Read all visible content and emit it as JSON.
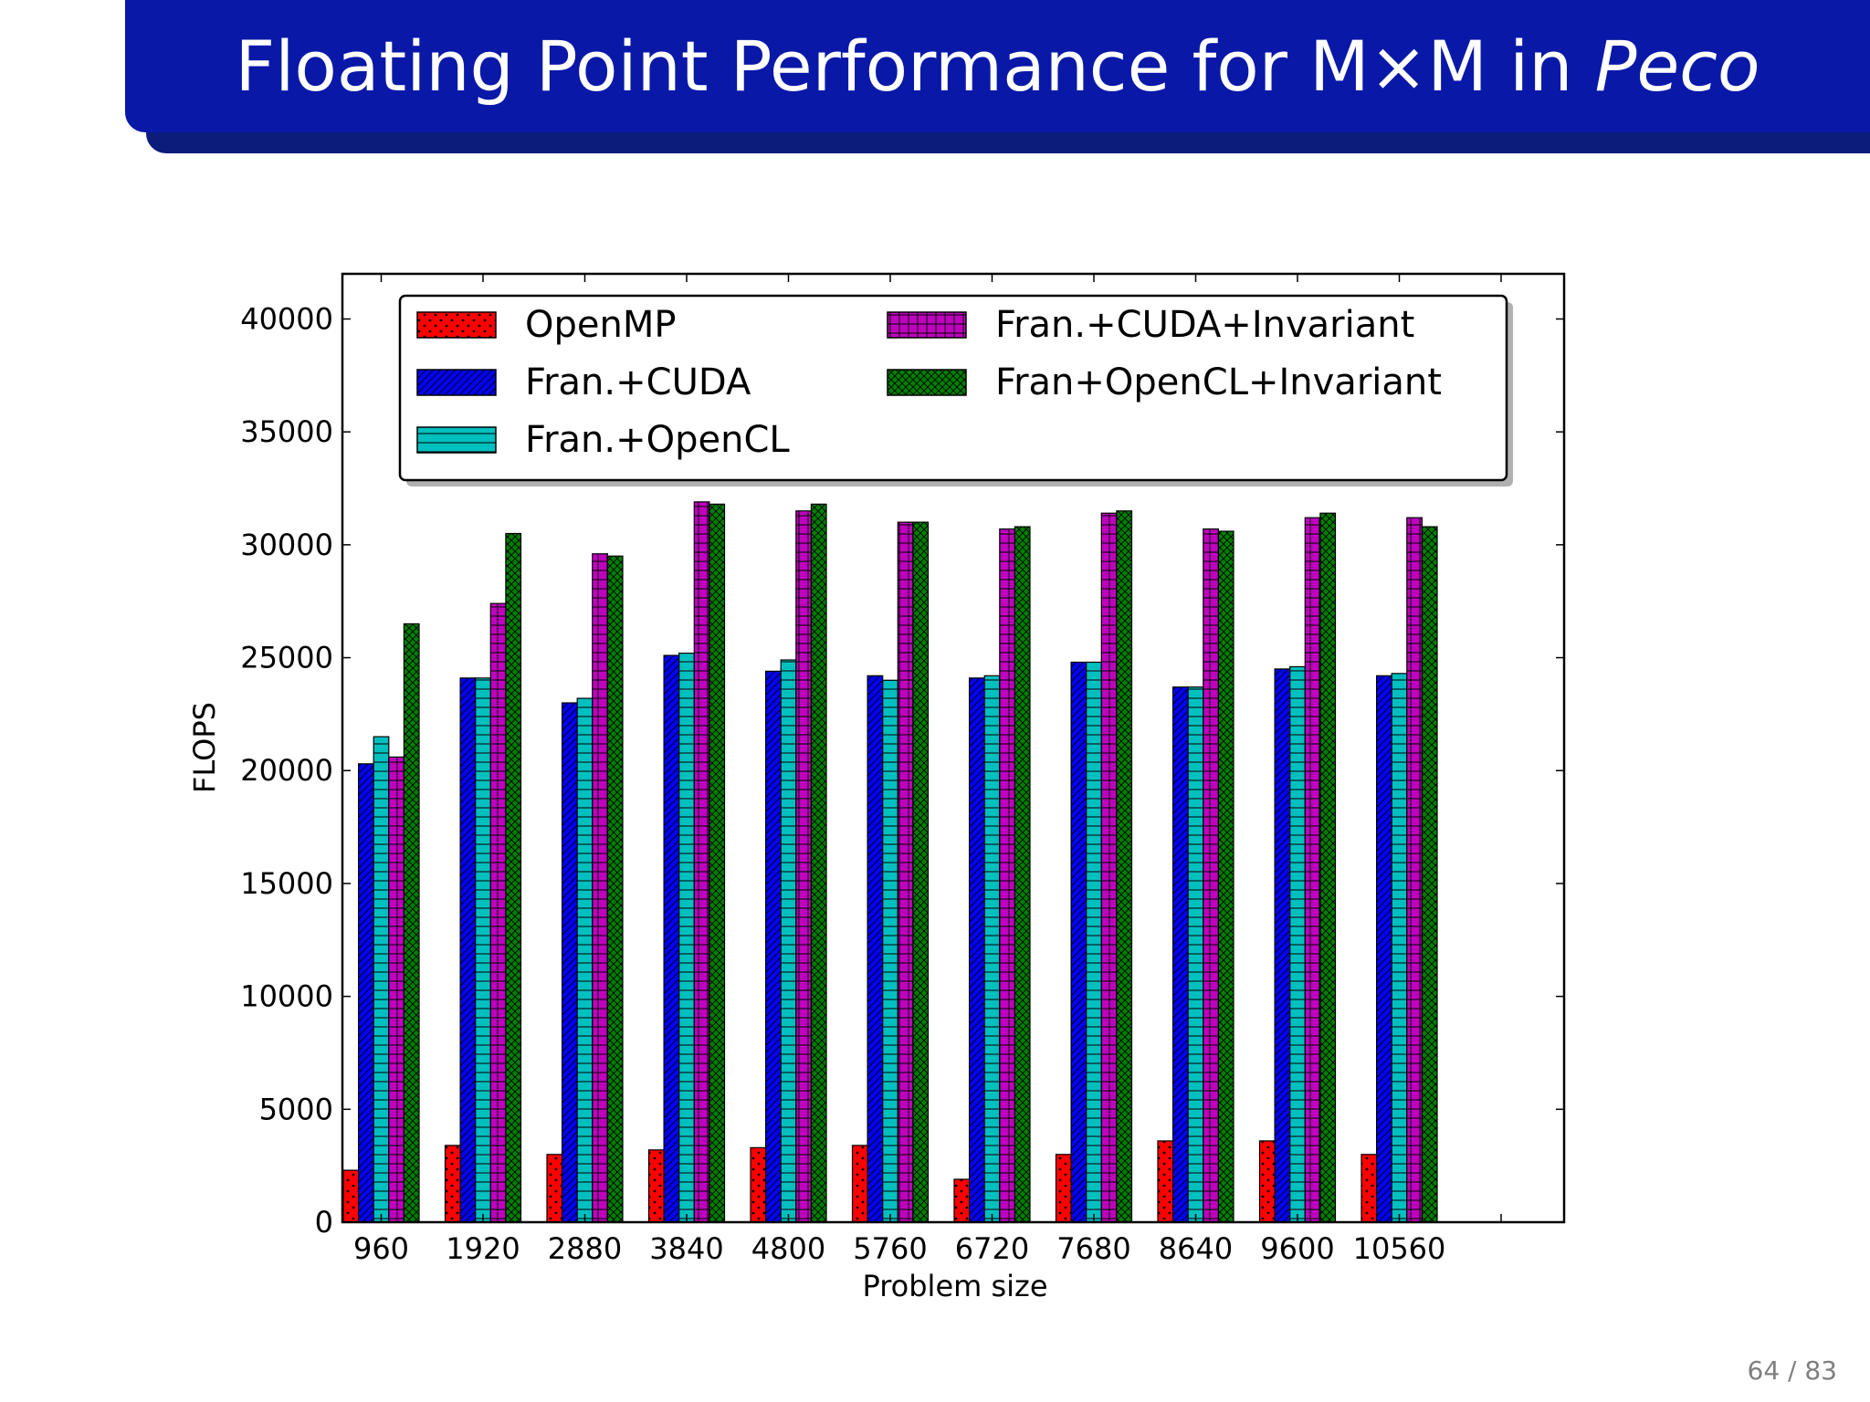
{
  "slide": {
    "title_main": "Floating Point Performance for M×M in",
    "title_italic": "Peco",
    "page_number": "64 / 83"
  },
  "chart_data": {
    "type": "bar",
    "title": "",
    "xlabel": "Problem size",
    "ylabel": "FLOPS",
    "ylim": [
      0,
      42000
    ],
    "yticks": [
      0,
      5000,
      10000,
      15000,
      20000,
      25000,
      30000,
      35000,
      40000
    ],
    "ytick_labels": [
      "0",
      "5000",
      "10000",
      "15000",
      "20000",
      "25000",
      "30000",
      "35000",
      "40000"
    ],
    "categories": [
      "960",
      "1920",
      "2880",
      "3840",
      "4800",
      "5760",
      "6720",
      "7680",
      "8640",
      "9600",
      "10560"
    ],
    "grid": false,
    "legend_position": "top",
    "series": [
      {
        "name": "OpenMP",
        "color": "#ff0000",
        "pattern": "dots",
        "values": [
          2300,
          3400,
          3000,
          3200,
          3300,
          3400,
          1900,
          3000,
          3600,
          3600,
          3000
        ]
      },
      {
        "name": "Fran.+CUDA",
        "color": "#0000ff",
        "pattern": "diagonal",
        "values": [
          20300,
          24100,
          23000,
          25100,
          24400,
          24200,
          24100,
          24800,
          23700,
          24500,
          24200
        ]
      },
      {
        "name": "Fran.+OpenCL",
        "color": "#00bfbf",
        "pattern": "horizontal",
        "values": [
          21500,
          24100,
          23200,
          25200,
          24900,
          24000,
          24200,
          24800,
          23700,
          24600,
          24300
        ]
      },
      {
        "name": "Fran.+CUDA+Invariant",
        "color": "#bf00bf",
        "pattern": "grid",
        "values": [
          20600,
          27400,
          29600,
          31900,
          31500,
          31000,
          30700,
          31400,
          30700,
          31200,
          31200
        ]
      },
      {
        "name": "Fran+OpenCL+Invariant",
        "color": "#007f00",
        "pattern": "crosshatch",
        "values": [
          26500,
          30500,
          29500,
          31800,
          31800,
          31000,
          30800,
          31500,
          30600,
          31400,
          30800
        ]
      }
    ]
  }
}
